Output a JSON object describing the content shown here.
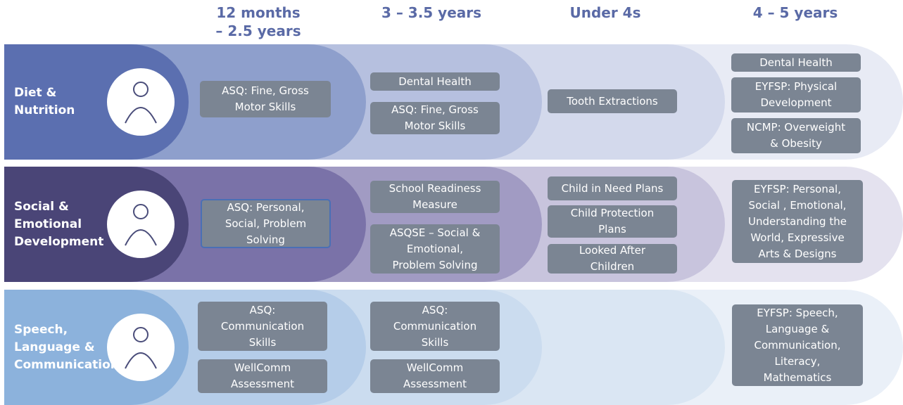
{
  "columns": [
    [
      "12 months",
      "– 2.5 years"
    ],
    [
      "3 – 3.5 years"
    ],
    [
      "Under 4s"
    ],
    [
      "4 – 5  years"
    ]
  ],
  "rows": [
    {
      "label": [
        "Diet &",
        "Nutrition"
      ],
      "cells": [
        [
          [
            "ASQ: Fine, Gross",
            "Motor Skills"
          ]
        ],
        [
          [
            "Dental Health"
          ],
          [
            "ASQ: Fine, Gross",
            "Motor Skills"
          ]
        ],
        [
          [
            "Tooth Extractions"
          ]
        ],
        [
          [
            "Dental Health"
          ],
          [
            "EYFSP: Physical",
            "Development"
          ],
          [
            "NCMP: Overweight",
            "& Obesity"
          ]
        ]
      ]
    },
    {
      "label": [
        "Social &",
        "Emotional",
        "Development"
      ],
      "cells": [
        [
          [
            "ASQ: Personal,",
            "Social, Problem",
            "Solving"
          ]
        ],
        [
          [
            "School Readiness",
            "Measure"
          ],
          [
            "ASQSE – Social &",
            "Emotional,",
            "Problem Solving"
          ]
        ],
        [
          [
            "Child in Need Plans"
          ],
          [
            "Child Protection",
            "Plans"
          ],
          [
            "Looked After",
            "Children"
          ]
        ],
        [
          [
            "EYFSP: Personal,",
            "Social , Emotional,",
            "Understanding the",
            "World, Expressive",
            "Arts & Designs"
          ]
        ]
      ]
    },
    {
      "label": [
        "Speech,",
        "Language &",
        "Communication"
      ],
      "cells": [
        [
          [
            "ASQ:",
            "Communication",
            "Skills"
          ],
          [
            "WellComm",
            "Assessment"
          ]
        ],
        [
          [
            "ASQ:",
            "Communication",
            "Skills"
          ],
          [
            "WellComm",
            "Assessment"
          ]
        ],
        [],
        [
          [
            "EYFSP: Speech,",
            "Language &",
            "Communication,",
            "Literacy,",
            "Mathematics"
          ]
        ]
      ]
    }
  ]
}
